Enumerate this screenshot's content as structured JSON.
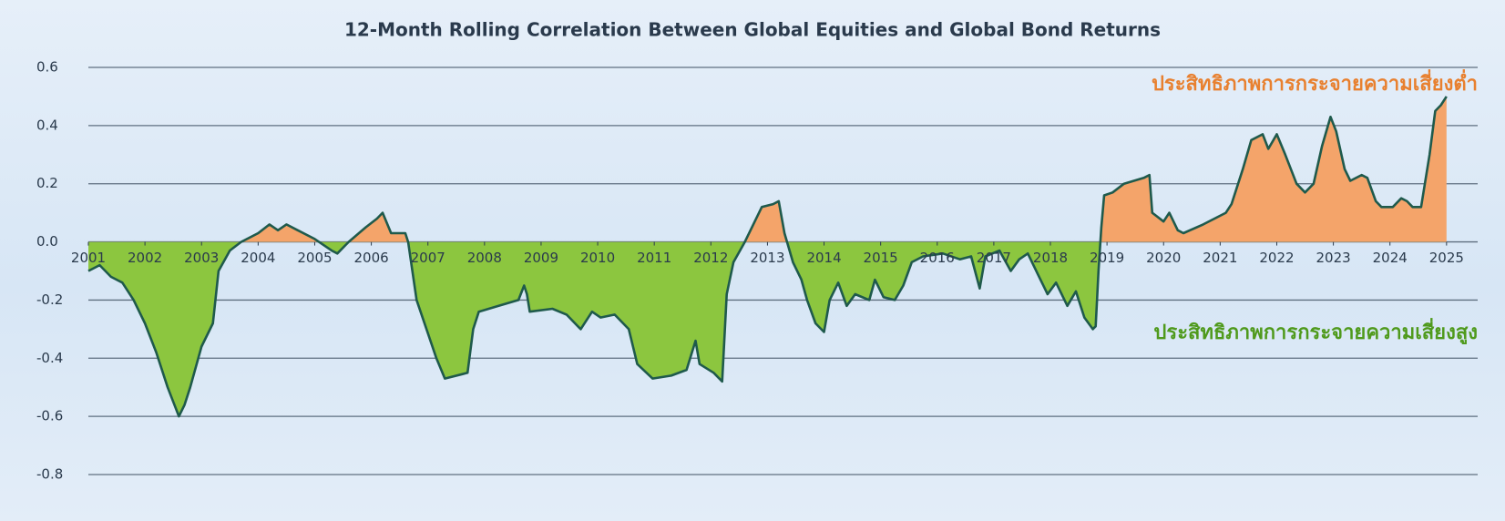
{
  "chart_data": {
    "type": "area",
    "title": "12-Month Rolling Correlation Between Global Equities and Global Bond Returns",
    "annotations": [
      "ประสิทธิภาพการกระจายความเสี่ยงต่ำ",
      "ประสิทธิภาพการกระจายความเสี่ยงสูง"
    ],
    "annotation_colors": [
      "#e8802f",
      "#4f9a1c"
    ],
    "x": [
      2001.0,
      2001.2,
      2001.4,
      2001.6,
      2001.8,
      2002.0,
      2002.2,
      2002.4,
      2002.5,
      2002.6,
      2002.7,
      2002.8,
      2003.0,
      2003.2,
      2003.3,
      2003.5,
      2003.7,
      2004.0,
      2004.2,
      2004.35,
      2004.5,
      2004.7,
      2005.0,
      2005.3,
      2005.4,
      2005.6,
      2005.9,
      2006.1,
      2006.2,
      2006.35,
      2006.45,
      2006.6,
      2006.65,
      2006.8,
      2007.15,
      2007.3,
      2007.7,
      2007.8,
      2007.9,
      2008.25,
      2008.6,
      2008.7,
      2008.75,
      2008.8,
      2009.2,
      2009.45,
      2009.7,
      2009.9,
      2010.05,
      2010.3,
      2010.55,
      2010.7,
      2010.97,
      2011.3,
      2011.57,
      2011.73,
      2011.8,
      2012.05,
      2012.2,
      2012.28,
      2012.4,
      2012.6,
      2012.75,
      2012.9,
      2013.1,
      2013.2,
      2013.3,
      2013.45,
      2013.6,
      2013.7,
      2013.85,
      2014.0,
      2014.1,
      2014.25,
      2014.4,
      2014.55,
      2014.8,
      2014.9,
      2015.05,
      2015.25,
      2015.4,
      2015.55,
      2015.75,
      2016.1,
      2016.4,
      2016.6,
      2016.75,
      2016.85,
      2017.1,
      2017.3,
      2017.45,
      2017.6,
      2017.8,
      2017.95,
      2018.1,
      2018.3,
      2018.45,
      2018.6,
      2018.75,
      2018.8,
      2018.85,
      2018.9,
      2018.95,
      2019.1,
      2019.3,
      2019.65,
      2019.75,
      2019.8,
      2020.0,
      2020.1,
      2020.25,
      2020.35,
      2020.7,
      2021.1,
      2021.2,
      2021.4,
      2021.55,
      2021.75,
      2021.85,
      2022.0,
      2022.15,
      2022.35,
      2022.5,
      2022.65,
      2022.8,
      2022.95,
      2023.05,
      2023.2,
      2023.3,
      2023.5,
      2023.6,
      2023.75,
      2023.85,
      2024.05,
      2024.2,
      2024.3,
      2024.4,
      2024.55,
      2024.7,
      2024.8,
      2024.9,
      2025.0
    ],
    "values": [
      -0.1,
      -0.08,
      -0.12,
      -0.14,
      -0.2,
      -0.28,
      -0.38,
      -0.5,
      -0.55,
      -0.6,
      -0.56,
      -0.5,
      -0.36,
      -0.28,
      -0.1,
      -0.03,
      0.0,
      0.03,
      0.06,
      0.04,
      0.06,
      0.04,
      0.01,
      -0.03,
      -0.04,
      0.0,
      0.05,
      0.08,
      0.1,
      0.03,
      0.03,
      0.03,
      0.0,
      -0.2,
      -0.4,
      -0.47,
      -0.45,
      -0.3,
      -0.24,
      -0.22,
      -0.2,
      -0.15,
      -0.18,
      -0.24,
      -0.23,
      -0.25,
      -0.3,
      -0.24,
      -0.26,
      -0.25,
      -0.3,
      -0.42,
      -0.47,
      -0.46,
      -0.44,
      -0.34,
      -0.42,
      -0.45,
      -0.48,
      -0.18,
      -0.07,
      0.0,
      0.06,
      0.12,
      0.13,
      0.14,
      0.03,
      -0.07,
      -0.13,
      -0.2,
      -0.28,
      -0.31,
      -0.2,
      -0.14,
      -0.22,
      -0.18,
      -0.2,
      -0.13,
      -0.19,
      -0.2,
      -0.15,
      -0.07,
      -0.05,
      -0.04,
      -0.06,
      -0.05,
      -0.16,
      -0.05,
      -0.03,
      -0.1,
      -0.06,
      -0.04,
      -0.12,
      -0.18,
      -0.14,
      -0.22,
      -0.17,
      -0.26,
      -0.3,
      -0.29,
      -0.1,
      0.05,
      0.16,
      0.17,
      0.2,
      0.22,
      0.23,
      0.1,
      0.07,
      0.1,
      0.04,
      0.03,
      0.06,
      0.1,
      0.13,
      0.25,
      0.35,
      0.37,
      0.32,
      0.37,
      0.3,
      0.2,
      0.17,
      0.2,
      0.33,
      0.43,
      0.38,
      0.25,
      0.21,
      0.23,
      0.22,
      0.14,
      0.12,
      0.12,
      0.15,
      0.14,
      0.12,
      0.12,
      0.3,
      0.45,
      0.47,
      0.5
    ],
    "xlim": [
      2001,
      2025.55
    ],
    "xticks": [
      2001,
      2002,
      2003,
      2004,
      2005,
      2006,
      2007,
      2008,
      2009,
      2010,
      2011,
      2012,
      2013,
      2014,
      2015,
      2016,
      2017,
      2018,
      2019,
      2020,
      2021,
      2022,
      2023,
      2024,
      2025
    ],
    "ylim": [
      -0.8,
      0.6
    ],
    "yticks": [
      -0.8,
      -0.6,
      -0.4,
      -0.2,
      {
        "value": 0,
        "label": "0.0"
      },
      0.2,
      0.4,
      0.6
    ],
    "grid": true,
    "line_color": "#1f5a4c",
    "positive_color": "#f4a46a",
    "negative_color": "#8cc63f"
  }
}
